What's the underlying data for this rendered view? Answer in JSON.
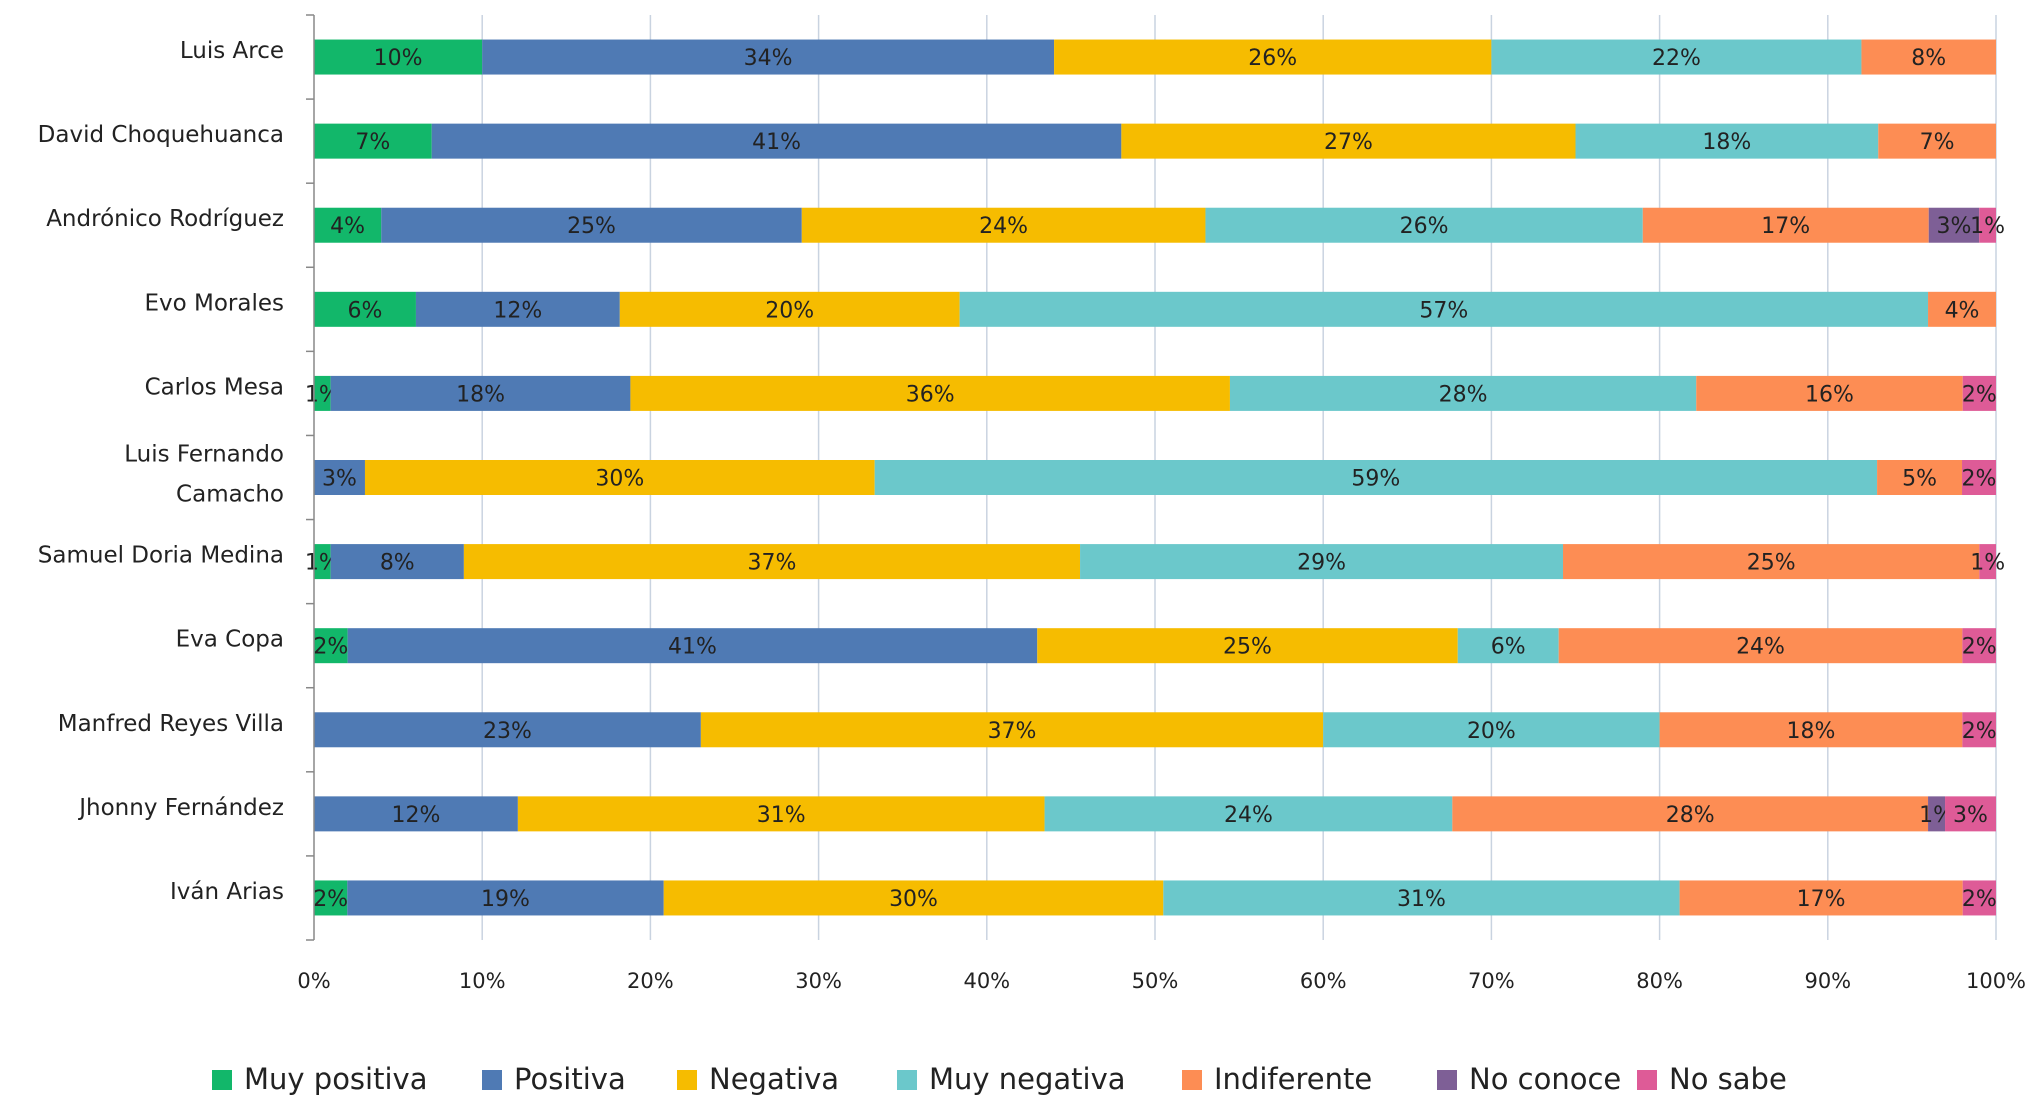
{
  "chart_data": {
    "type": "bar",
    "orientation": "horizontal",
    "stacked": true,
    "percent_stacked": true,
    "categories": [
      [
        "Luis Arce"
      ],
      [
        "David Choquehuanca"
      ],
      [
        "Andrónico Rodríguez"
      ],
      [
        "Evo Morales"
      ],
      [
        "Carlos Mesa"
      ],
      [
        "Luis Fernando",
        "Camacho"
      ],
      [
        "Samuel Doria Medina"
      ],
      [
        "Eva Copa"
      ],
      [
        "Manfred Reyes Villa"
      ],
      [
        "Jhonny Fernández"
      ],
      [
        "Iván Arias"
      ]
    ],
    "series": [
      {
        "name": "Muy positiva",
        "color": "#12b76a",
        "values": [
          10,
          7,
          4,
          6,
          1,
          0,
          1,
          2,
          0,
          0,
          2
        ]
      },
      {
        "name": "Positiva",
        "color": "#4f7ab4",
        "values": [
          34,
          41,
          25,
          12,
          18,
          3,
          8,
          41,
          23,
          12,
          19
        ]
      },
      {
        "name": "Negativa",
        "color": "#f6bc00",
        "values": [
          26,
          27,
          24,
          20,
          36,
          30,
          37,
          25,
          37,
          31,
          30
        ]
      },
      {
        "name": "Muy negativa",
        "color": "#6bc8cb",
        "values": [
          22,
          18,
          26,
          57,
          28,
          59,
          29,
          6,
          20,
          24,
          31
        ]
      },
      {
        "name": "Indiferente",
        "color": "#fd8d54",
        "values": [
          8,
          7,
          17,
          4,
          16,
          5,
          25,
          24,
          18,
          28,
          17
        ]
      },
      {
        "name": "No conoce",
        "color": "#7e5f96",
        "values": [
          0,
          0,
          3,
          0,
          0,
          0,
          0,
          0,
          0,
          1,
          0
        ]
      },
      {
        "name": "No sabe",
        "color": "#de5b97",
        "values": [
          0,
          0,
          1,
          0,
          2,
          2,
          1,
          2,
          2,
          3,
          2
        ]
      }
    ],
    "x_ticks": [
      "0%",
      "10%",
      "20%",
      "30%",
      "40%",
      "50%",
      "60%",
      "70%",
      "80%",
      "90%",
      "100%"
    ],
    "xlim": [
      0,
      100
    ],
    "grid": true,
    "legend_position": "bottom"
  }
}
